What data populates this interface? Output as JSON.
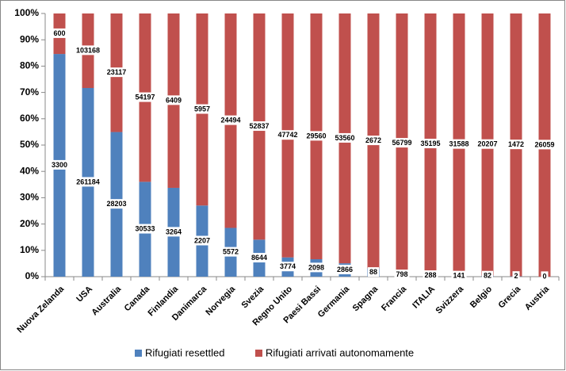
{
  "chart_data": {
    "type": "bar",
    "stacking": "percent",
    "categories": [
      "Nuova Zelanda",
      "USA",
      "Australia",
      "Canada",
      "Finlandia",
      "Danimarca",
      "Norvegia",
      "Svezia",
      "Regno Unito",
      "Paesi Bassi",
      "Germania",
      "Spagna",
      "Francia",
      "ITALIA",
      "Svizzera",
      "Belgio",
      "Grecia",
      "Austria"
    ],
    "series": [
      {
        "name": "Rifugiati resettled",
        "color": "#4f81bd",
        "values": [
          3300,
          261184,
          28203,
          30533,
          3264,
          2207,
          5572,
          8644,
          3774,
          2098,
          2866,
          88,
          798,
          288,
          141,
          82,
          2,
          0
        ]
      },
      {
        "name": "Rifugiati arrivati autonomamente",
        "color": "#c0504d",
        "values": [
          600,
          103168,
          23117,
          54197,
          6409,
          5957,
          24494,
          52837,
          47742,
          29560,
          53560,
          2672,
          56799,
          35195,
          31588,
          20207,
          1472,
          26059
        ]
      }
    ],
    "ylim": [
      0,
      100
    ],
    "yticks": [
      {
        "value": 0,
        "label": "0%"
      },
      {
        "value": 10,
        "label": "10%"
      },
      {
        "value": 20,
        "label": "20%"
      },
      {
        "value": 30,
        "label": "30%"
      },
      {
        "value": 40,
        "label": "40%"
      },
      {
        "value": 50,
        "label": "50%"
      },
      {
        "value": 60,
        "label": "60%"
      },
      {
        "value": 70,
        "label": "70%"
      },
      {
        "value": 80,
        "label": "80%"
      },
      {
        "value": 90,
        "label": "90%"
      },
      {
        "value": 100,
        "label": "100%"
      }
    ],
    "grid": false,
    "legend": "bottom"
  }
}
